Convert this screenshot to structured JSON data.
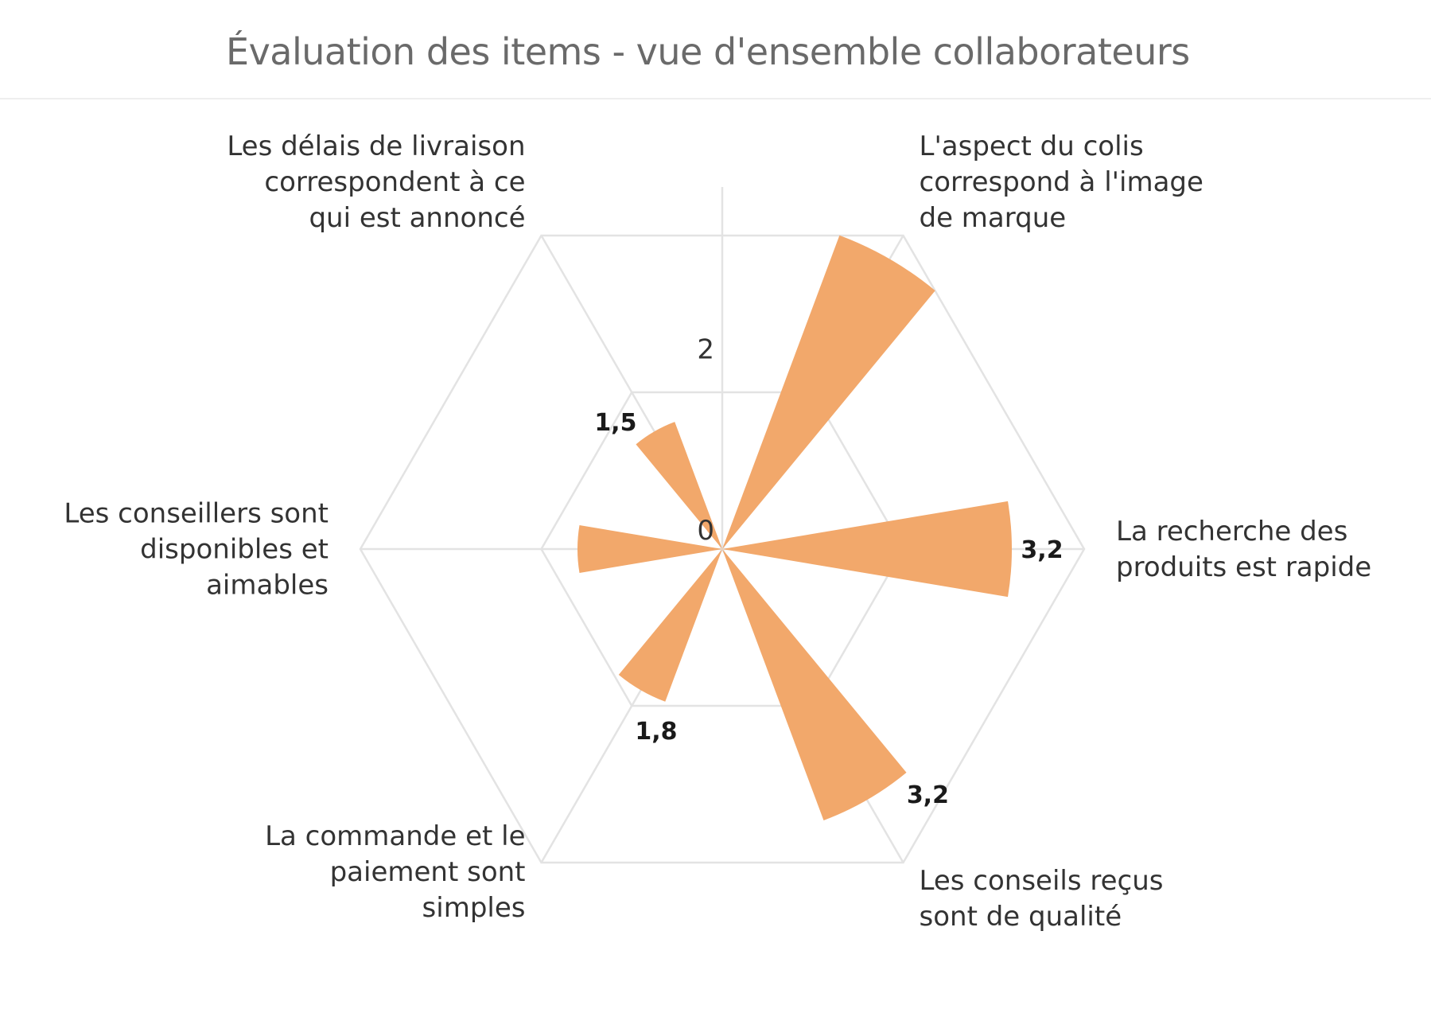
{
  "title": "Évaluation des items - vue d'ensemble collaborateurs",
  "chart_data": {
    "type": "polar-bar",
    "title": "Évaluation des items - vue d'ensemble collaborateurs",
    "categories": [
      "L'aspect du colis correspond à l'image de marque",
      "La recherche des produits est rapide",
      "Les conseils reçus sont de qualité",
      "La commande et le paiement sont simples",
      "Les conseillers sont disponibles et aimables",
      "Les délais de livraison correspondent à ce qui est annoncé"
    ],
    "category_lines": [
      [
        "L'aspect du colis",
        "correspond à l'image",
        "de marque"
      ],
      [
        "La recherche des",
        "produits est rapide"
      ],
      [
        "Les conseils reçus",
        "sont de qualité"
      ],
      [
        "La commande et le",
        "paiement sont",
        "simples"
      ],
      [
        "Les conseillers sont",
        "disponibles et",
        "aimables"
      ],
      [
        "Les délais de livraison",
        "correspondent à ce",
        "qui est annoncé"
      ]
    ],
    "values": [
      3.7,
      3.2,
      3.2,
      1.8,
      1.6,
      1.5
    ],
    "data_labels": [
      "",
      "3,2",
      "3,2",
      "1,8",
      "",
      "1,5"
    ],
    "radial_ticks": [
      "0",
      "2"
    ],
    "radial_tick_values": [
      0,
      2
    ],
    "ylim": [
      0,
      4
    ],
    "grid_rings": [
      2,
      4
    ],
    "grid_shape": "hexagon",
    "color": "#f2a86b",
    "grid_color": "#e3e3e3"
  }
}
